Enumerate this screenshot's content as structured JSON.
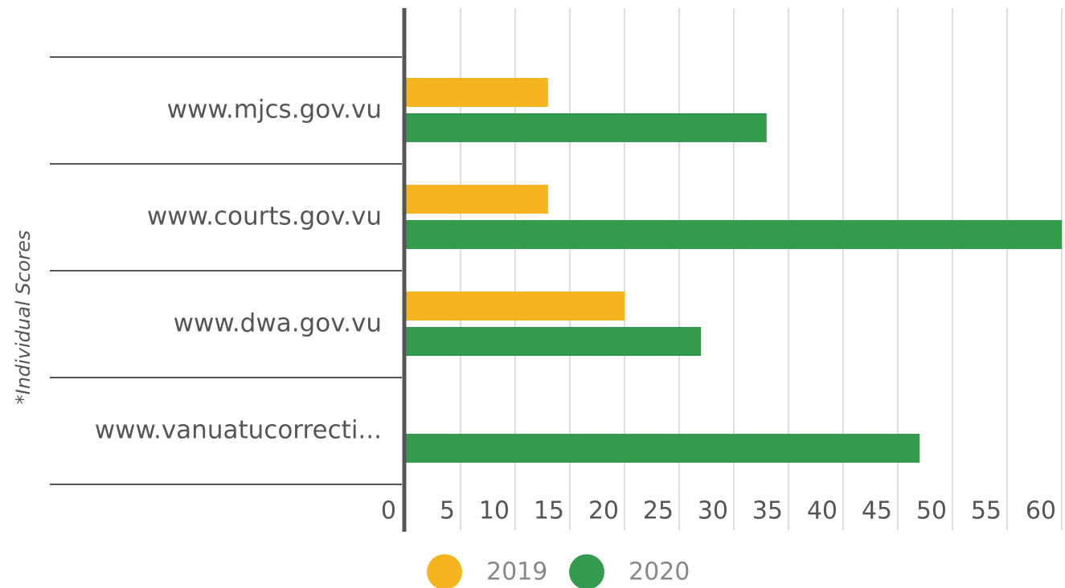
{
  "chart_data": {
    "type": "bar",
    "orientation": "horizontal",
    "y_axis_label": "*Individual Scores",
    "categories": [
      "www.mjcs.gov.vu",
      "www.courts.gov.vu",
      "www.dwa.gov.vu",
      "www.vanuatucorrecti..."
    ],
    "series": [
      {
        "name": "2019",
        "color": "#f7b41e",
        "values": [
          13,
          13,
          20,
          null
        ]
      },
      {
        "name": "2020",
        "color": "#349a4e",
        "values": [
          33,
          60,
          27,
          47
        ]
      }
    ],
    "xlim": [
      0,
      60
    ],
    "xticks": [
      0,
      5,
      10,
      15,
      20,
      25,
      30,
      35,
      40,
      45,
      50,
      55,
      60
    ],
    "grid": true,
    "legend": "bottom"
  }
}
